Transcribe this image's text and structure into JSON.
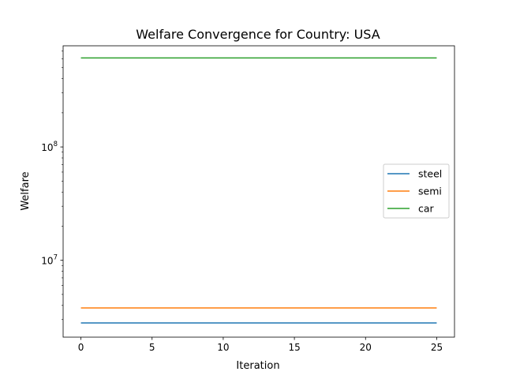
{
  "chart_data": {
    "type": "line",
    "title": "Welfare Convergence for Country: USA",
    "xlabel": "Iteration",
    "ylabel": "Welfare",
    "xlim": [
      -1.25,
      26.25
    ],
    "ylim": [
      2100000,
      780000000
    ],
    "yscale": "log",
    "x_ticks": [
      0,
      5,
      10,
      15,
      20,
      25
    ],
    "y_ticks": [
      {
        "value": 10000000,
        "base": "10",
        "exp": "7"
      },
      {
        "value": 100000000,
        "base": "10",
        "exp": "8"
      }
    ],
    "x": [
      0,
      1,
      2,
      3,
      4,
      5,
      6,
      7,
      8,
      9,
      10,
      11,
      12,
      13,
      14,
      15,
      16,
      17,
      18,
      19,
      20,
      21,
      22,
      23,
      24,
      25
    ],
    "series": [
      {
        "name": "steel",
        "color": "#1f77b4",
        "value": 2800000
      },
      {
        "name": "semi",
        "color": "#ff7f0e",
        "value": 3800000
      },
      {
        "name": "car",
        "color": "#2ca02c",
        "value": 610000000
      }
    ],
    "legend": {
      "position": "center-right"
    },
    "grid": false
  }
}
